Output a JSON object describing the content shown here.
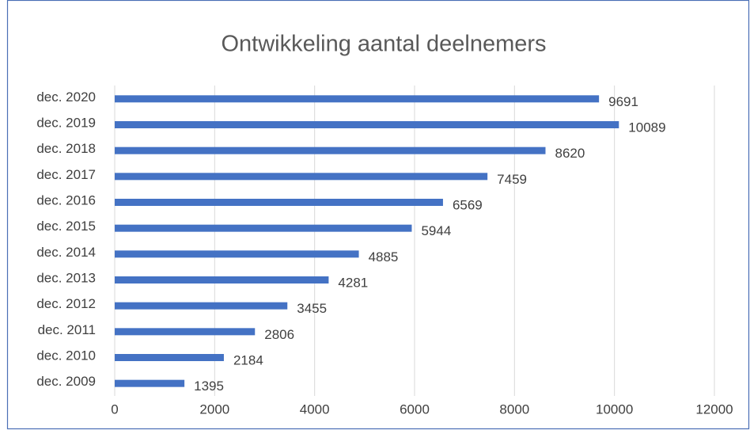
{
  "chart_data": {
    "type": "hbar",
    "title": "Ontwikkeling aantal deelnemers",
    "categories": [
      "dec. 2009",
      "dec. 2010",
      "dec. 2011",
      "dec. 2012",
      "dec. 2013",
      "dec. 2014",
      "dec. 2015",
      "dec. 2016",
      "dec. 2017",
      "dec. 2018",
      "dec. 2019",
      "dec. 2020"
    ],
    "values": [
      1395,
      2184,
      2806,
      3455,
      4281,
      4885,
      5944,
      6569,
      7459,
      8620,
      10089,
      9691
    ],
    "color": "#4472c4",
    "xlim": [
      0,
      12000
    ],
    "xticks": [
      0,
      2000,
      4000,
      6000,
      8000,
      10000,
      12000
    ],
    "grid": true
  }
}
